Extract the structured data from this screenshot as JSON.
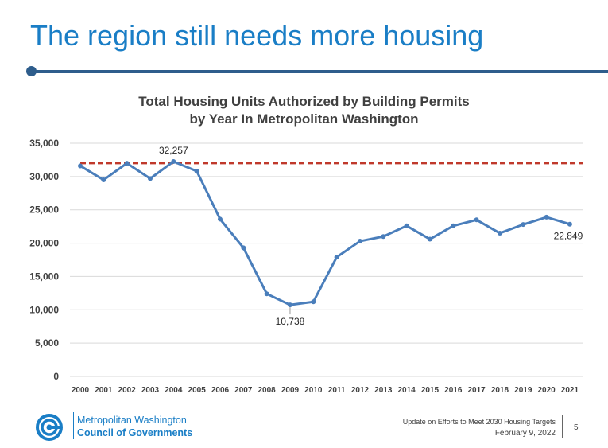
{
  "slide": {
    "title": "The region still needs more housing",
    "footer": {
      "org_line1": "Metropolitan Washington",
      "org_line2": "Council of Governments",
      "presentation": "Update on Efforts to Meet 2030 Housing Targets",
      "date": "February 9, 2022",
      "page": "5"
    },
    "colors": {
      "title": "#1a7ec6",
      "rule": "#2e5d8c",
      "series": "#4a7ebb",
      "target_line": "#c0392b"
    }
  },
  "chart_data": {
    "type": "line",
    "title_line1": "Total Housing Units Authorized by Building Permits",
    "title_line2": "by Year In Metropolitan Washington",
    "xlabel": "",
    "ylabel": "",
    "categories": [
      "2000",
      "2001",
      "2002",
      "2003",
      "2004",
      "2005",
      "2006",
      "2007",
      "2008",
      "2009",
      "2010",
      "2011",
      "2012",
      "2013",
      "2014",
      "2015",
      "2016",
      "2017",
      "2018",
      "2019",
      "2020",
      "2021"
    ],
    "values": [
      31600,
      29500,
      32000,
      29700,
      32257,
      30800,
      23600,
      19300,
      12400,
      10738,
      11200,
      17900,
      20300,
      21000,
      22600,
      20600,
      22600,
      23500,
      21500,
      22800,
      23900,
      22849
    ],
    "data_labels": [
      {
        "index": 4,
        "text": "32,257"
      },
      {
        "index": 9,
        "text": "10,738"
      },
      {
        "index": 21,
        "text": "22,849"
      }
    ],
    "reference_line": 32000,
    "ylim": [
      0,
      35000
    ],
    "yticks": [
      "0",
      "5,000",
      "10,000",
      "15,000",
      "20,000",
      "25,000",
      "30,000",
      "35,000"
    ],
    "grid": true,
    "legend": "none"
  }
}
